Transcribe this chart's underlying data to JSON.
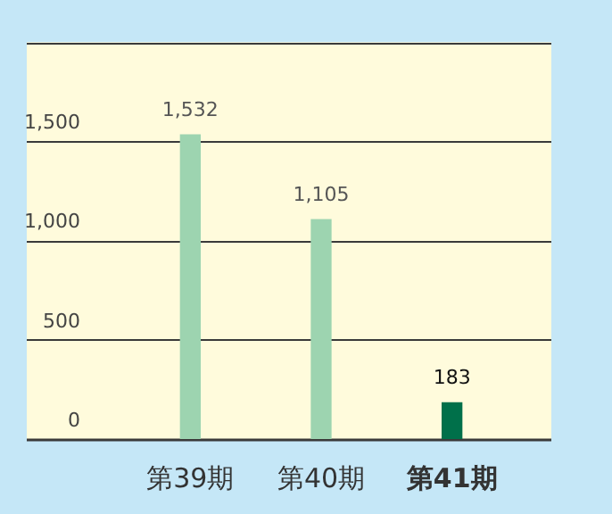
{
  "chart_data": {
    "type": "bar",
    "categories": [
      "第39期",
      "第40期",
      "第41期"
    ],
    "values": [
      1532,
      1105,
      183
    ],
    "value_labels": [
      "1,532",
      "1,105",
      "183"
    ],
    "colors": [
      "#9dd4b0",
      "#9dd4b0",
      "#00704a"
    ],
    "ylim": [
      0,
      2000
    ],
    "yticks": [
      0,
      500,
      {
        "value": 1000,
        "label": "1,000"
      },
      {
        "value": 1500,
        "label": "1,500"
      },
      {
        "value": 2000,
        "label": null
      }
    ],
    "grid": true,
    "legend": false
  }
}
